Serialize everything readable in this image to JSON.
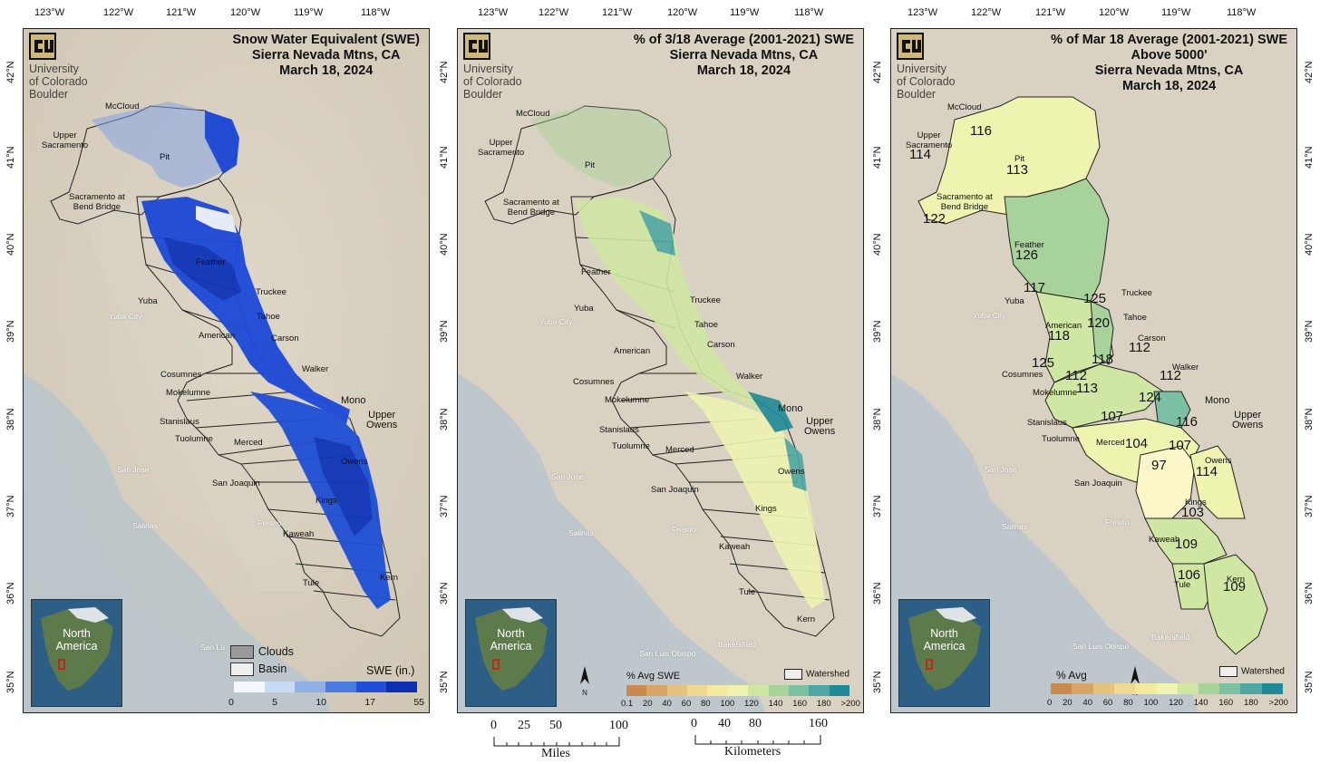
{
  "longitudes": [
    "123°W",
    "122°W",
    "121°W",
    "120°W",
    "119°W",
    "118°W"
  ],
  "latitudes": [
    "42°N",
    "41°N",
    "40°N",
    "39°N",
    "38°N",
    "37°N",
    "36°N",
    "35°N"
  ],
  "logo": {
    "line1": "University",
    "line2": "of Colorado",
    "line3": "Boulder",
    "mark": "cu-logo-icon"
  },
  "inset": {
    "line1": "North",
    "line2": "America"
  },
  "panels": [
    {
      "title": [
        "Snow Water Equivalent (SWE)",
        "Sierra Nevada Mtns, CA",
        "March 18, 2024"
      ],
      "legend": {
        "clouds": "Clouds",
        "basin": "Basin",
        "label": "SWE (in.)",
        "ticks": [
          "0",
          "5",
          "10",
          "17",
          "55"
        ]
      }
    },
    {
      "title": [
        "% of 3/18 Average (2001-2021) SWE",
        "Sierra Nevada Mtns, CA",
        "March 18, 2024"
      ],
      "legend": {
        "label": "% Avg SWE",
        "watershed": "Watershed",
        "ticks": [
          "0.1",
          "20",
          "40",
          "60",
          "80",
          "100",
          "120",
          "140",
          "160",
          "180",
          ">200"
        ]
      }
    },
    {
      "title": [
        "% of Mar 18 Average (2001-2021) SWE",
        "Above 5000'",
        "Sierra Nevada Mtns, CA",
        "March 18, 2024"
      ],
      "legend": {
        "label": "% Avg",
        "watershed": "Watershed",
        "ticks": [
          "0",
          "20",
          "40",
          "60",
          "80",
          "100",
          "120",
          "140",
          "160",
          "180",
          ">200"
        ]
      }
    }
  ],
  "basins": {
    "mccloud": "McCloud",
    "upper_sac": "Upper\nSacramento",
    "pit": "Pit",
    "sac_bend": "Sacramento at\nBend Bridge",
    "feather": "Feather",
    "yuba": "Yuba",
    "truckee": "Truckee",
    "tahoe": "Tahoe",
    "american": "American",
    "carson": "Carson",
    "cosumnes": "Cosumnes",
    "walker": "Walker",
    "mokelumne": "Mokelumne",
    "mono": "Mono",
    "upper_owens": "Upper\nOwens",
    "stanislaus": "Stanislaus",
    "tuolumne": "Tuolumne",
    "merced": "Merced",
    "owens": "Owens",
    "san_joaquin": "San Joaquin",
    "kings": "Kings",
    "kaweah": "Kaweah",
    "tule": "Tule",
    "kern": "Kern"
  },
  "cities": {
    "yuba_city": "Yuba City",
    "san_jose": "San Jose",
    "salinas": "Salinas",
    "fresno": "Fresno",
    "bakersfield": "Bakersfield",
    "san_luis": "San Luis Obispo",
    "san_lu_short": "San Lu"
  },
  "percent_above_5000": {
    "upper_sacramento": "114",
    "mccloud": "116",
    "pit": "113",
    "sacramento_bend": "122",
    "feather": "126",
    "yuba": "117",
    "truckee": "125",
    "tahoe": "120",
    "american": "118",
    "carson": "112",
    "cosumnes": "125",
    "mokelumne_a": "112",
    "mokelumne_b": "118",
    "stanislaus": "113",
    "walker": "112",
    "mono": "124",
    "tuolumne": "107",
    "upper_owens": "116",
    "merced": "104",
    "owens_upper": "107",
    "san_joaquin": "97",
    "owens": "114",
    "kings": "103",
    "kaweah": "109",
    "tule": "106",
    "kern": "109"
  },
  "scalebars": {
    "miles": {
      "ticks": [
        "0",
        "25",
        "50",
        "100"
      ],
      "unit": "Miles"
    },
    "kilometers": {
      "ticks": [
        "0",
        "40",
        "80",
        "160"
      ],
      "unit": "Kilometers"
    }
  },
  "north_arrow": "N",
  "colors": {
    "swe_scale": [
      "#f4f8fc",
      "#c9dbf2",
      "#8fb0e6",
      "#4a7be0",
      "#1e4fd6",
      "#0b2fb0"
    ],
    "pct_scale": [
      "#c98a4c",
      "#d9a466",
      "#e6c27f",
      "#efd891",
      "#f4ea9d",
      "#eef3b0",
      "#d0e6a3",
      "#a7d39a",
      "#7cc0a3",
      "#4ea7a3",
      "#1f8a96"
    ]
  }
}
